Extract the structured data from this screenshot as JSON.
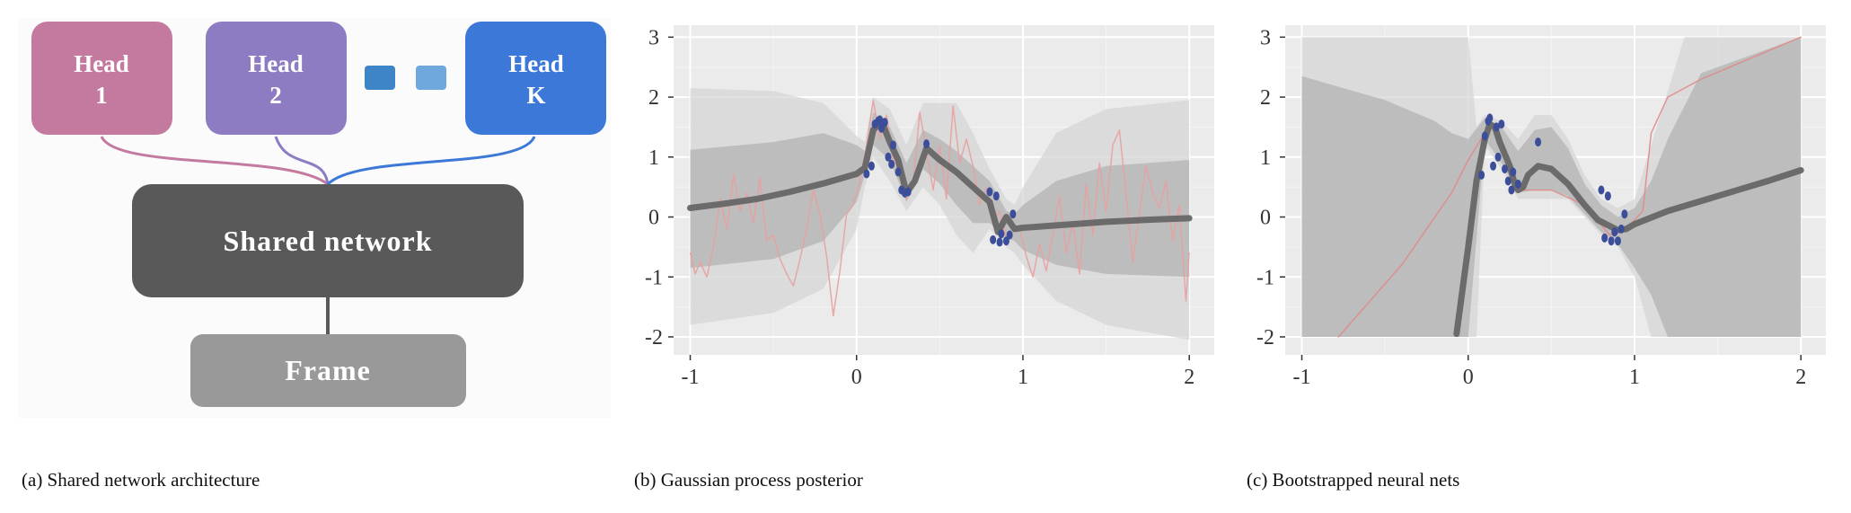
{
  "captions": {
    "a": "(a) Shared network architecture",
    "b": "(b) Gaussian process posterior",
    "c": "(c) Bootstrapped neural nets"
  },
  "diagram": {
    "heads": [
      {
        "line1": "Head",
        "line2": "1",
        "color": "#c47a9f"
      },
      {
        "line1": "Head",
        "line2": "2",
        "color": "#8e7cc3"
      },
      {
        "line1": "Head",
        "line2": "K",
        "color": "#3c78d8"
      }
    ],
    "ellipsis_colors": [
      "#3d85c6",
      "#6fa8dc"
    ],
    "shared_label": "Shared network",
    "shared_color": "#595959",
    "frame_label": "Frame",
    "frame_color": "#999999"
  },
  "chart_data": [
    {
      "id": "gp",
      "type": "line",
      "xlim": [
        -1.1,
        2.15
      ],
      "ylim": [
        -2.3,
        3.2
      ],
      "xticks": [
        "-1",
        "0",
        "1",
        "2"
      ],
      "yticks": [
        "-2",
        "-1",
        "0",
        "1",
        "2",
        "3"
      ],
      "grid": true,
      "colors": {
        "mean": "#666666",
        "sample": "#e8a0a0",
        "points": "#3c4d99",
        "band_outer": "#d6d6d6",
        "band_inner": "#b3b3b3",
        "background": "#ebebeb"
      },
      "observations": {
        "x": [
          0.06,
          0.09,
          0.11,
          0.13,
          0.14,
          0.15,
          0.17,
          0.19,
          0.21,
          0.22,
          0.25,
          0.27,
          0.29,
          0.31,
          0.42,
          0.8,
          0.82,
          0.84,
          0.86,
          0.87,
          0.9,
          0.92,
          0.94
        ],
        "y": [
          0.72,
          0.85,
          1.55,
          1.6,
          1.62,
          1.48,
          1.58,
          1.0,
          0.88,
          1.2,
          0.75,
          0.45,
          0.4,
          0.42,
          1.22,
          0.42,
          -0.38,
          0.35,
          -0.42,
          -0.28,
          -0.4,
          -0.3,
          0.05
        ]
      },
      "mean": {
        "x": [
          -1.0,
          -0.8,
          -0.6,
          -0.4,
          -0.2,
          0.0,
          0.05,
          0.1,
          0.15,
          0.2,
          0.25,
          0.3,
          0.35,
          0.42,
          0.5,
          0.6,
          0.7,
          0.8,
          0.85,
          0.9,
          0.95,
          1.0,
          1.2,
          1.5,
          1.8,
          2.0
        ],
        "y": [
          0.15,
          0.22,
          0.3,
          0.42,
          0.56,
          0.72,
          0.82,
          1.45,
          1.6,
          1.25,
          0.95,
          0.4,
          0.6,
          1.15,
          0.95,
          0.75,
          0.5,
          0.25,
          -0.25,
          0.0,
          -0.2,
          -0.18,
          -0.14,
          -0.08,
          -0.04,
          -0.02
        ]
      },
      "outer_band": {
        "x": [
          -1.0,
          -0.5,
          -0.2,
          0.0,
          0.05,
          0.1,
          0.2,
          0.3,
          0.4,
          0.5,
          0.6,
          0.7,
          0.8,
          0.9,
          0.95,
          1.0,
          1.2,
          1.5,
          2.0
        ],
        "lower": [
          -1.8,
          -1.6,
          -1.2,
          -0.2,
          0.5,
          1.0,
          0.6,
          0.1,
          0.5,
          0.2,
          -0.3,
          -0.6,
          -0.2,
          -0.5,
          -0.6,
          -0.8,
          -1.4,
          -1.8,
          -2.05
        ],
        "upper": [
          2.15,
          2.1,
          1.9,
          1.35,
          1.25,
          2.0,
          1.8,
          1.2,
          1.9,
          1.9,
          1.9,
          1.4,
          0.8,
          0.3,
          0.2,
          0.5,
          1.4,
          1.8,
          1.95
        ]
      },
      "inner_band": {
        "x": [
          -1.0,
          -0.5,
          -0.2,
          0.0,
          0.05,
          0.1,
          0.2,
          0.3,
          0.4,
          0.5,
          0.6,
          0.7,
          0.8,
          0.9,
          0.95,
          1.0,
          1.2,
          1.5,
          2.0
        ],
        "lower": [
          -0.85,
          -0.7,
          -0.4,
          0.25,
          0.7,
          1.2,
          0.95,
          0.25,
          0.8,
          0.55,
          0.2,
          -0.1,
          -0.1,
          -0.35,
          -0.4,
          -0.55,
          -0.8,
          -0.95,
          -1.0
        ],
        "upper": [
          1.12,
          1.25,
          1.4,
          1.2,
          1.1,
          1.75,
          1.5,
          0.9,
          1.45,
          1.3,
          1.1,
          0.85,
          0.6,
          0.1,
          0.05,
          0.2,
          0.6,
          0.85,
          0.95
        ]
      },
      "sample": {
        "x": [
          -1.0,
          -0.97,
          -0.94,
          -0.9,
          -0.86,
          -0.82,
          -0.78,
          -0.74,
          -0.7,
          -0.66,
          -0.62,
          -0.58,
          -0.54,
          -0.5,
          -0.46,
          -0.42,
          -0.38,
          -0.34,
          -0.3,
          -0.26,
          -0.22,
          -0.18,
          -0.14,
          -0.1,
          -0.06,
          -0.02,
          0.02,
          0.06,
          0.1,
          0.14,
          0.18,
          0.22,
          0.26,
          0.3,
          0.34,
          0.38,
          0.42,
          0.46,
          0.5,
          0.54,
          0.58,
          0.62,
          0.66,
          0.7,
          0.74,
          0.78,
          0.82,
          0.86,
          0.9,
          0.94,
          0.98,
          1.02,
          1.06,
          1.1,
          1.14,
          1.18,
          1.22,
          1.26,
          1.3,
          1.34,
          1.38,
          1.42,
          1.46,
          1.5,
          1.54,
          1.58,
          1.62,
          1.66,
          1.7,
          1.74,
          1.78,
          1.82,
          1.86,
          1.9,
          1.94,
          1.98,
          2.0
        ],
        "y": [
          -0.6,
          -0.95,
          -0.75,
          -1.0,
          -0.5,
          0.3,
          -0.2,
          0.7,
          0.1,
          0.4,
          -0.1,
          0.65,
          -0.4,
          -0.3,
          -0.7,
          -0.95,
          -1.15,
          -0.7,
          -0.2,
          0.45,
          0.05,
          -0.65,
          -1.65,
          -0.9,
          0.05,
          0.2,
          0.6,
          1.2,
          1.95,
          1.3,
          1.7,
          0.95,
          0.8,
          0.3,
          0.55,
          1.75,
          1.1,
          0.45,
          1.2,
          0.3,
          1.85,
          0.9,
          1.3,
          0.85,
          0.2,
          0.5,
          -0.1,
          0.1,
          -0.35,
          -0.25,
          -0.2,
          -0.65,
          -1.0,
          -0.45,
          -0.9,
          -0.3,
          0.35,
          -0.6,
          -0.1,
          -0.95,
          0.55,
          -0.3,
          0.9,
          0.1,
          1.2,
          1.45,
          0.4,
          -0.75,
          0.05,
          0.85,
          0.4,
          0.15,
          0.6,
          -0.4,
          0.2,
          -1.4,
          -0.6
        ]
      }
    },
    {
      "id": "bootstrap",
      "type": "line",
      "xlim": [
        -1.1,
        2.15
      ],
      "ylim": [
        -2.3,
        3.2
      ],
      "xticks": [
        "-1",
        "0",
        "1",
        "2"
      ],
      "yticks": [
        "-2",
        "-1",
        "0",
        "1",
        "2",
        "3"
      ],
      "grid": true,
      "colors": {
        "mean": "#666666",
        "sample": "#e08a8a",
        "points": "#3c4d99",
        "band_outer": "#d6d6d6",
        "band_inner": "#b3b3b3",
        "background": "#ebebeb"
      },
      "observations": {
        "x": [
          0.08,
          0.1,
          0.12,
          0.13,
          0.15,
          0.17,
          0.18,
          0.2,
          0.22,
          0.24,
          0.26,
          0.27,
          0.3,
          0.42,
          0.8,
          0.82,
          0.84,
          0.86,
          0.88,
          0.9,
          0.92,
          0.94
        ],
        "y": [
          0.7,
          1.35,
          1.6,
          1.65,
          0.85,
          1.5,
          1.0,
          1.55,
          0.8,
          0.6,
          0.45,
          0.75,
          0.55,
          1.25,
          0.45,
          -0.35,
          0.35,
          -0.4,
          -0.25,
          -0.4,
          -0.2,
          0.05
        ]
      },
      "mean": {
        "x": [
          -0.07,
          0.0,
          0.05,
          0.1,
          0.13,
          0.16,
          0.19,
          0.22,
          0.25,
          0.28,
          0.3,
          0.33,
          0.36,
          0.42,
          0.5,
          0.6,
          0.7,
          0.78,
          0.85,
          0.9,
          0.95,
          1.0,
          1.2,
          1.5,
          1.8,
          2.0
        ],
        "y": [
          -1.95,
          -0.5,
          0.6,
          1.3,
          1.55,
          1.5,
          1.25,
          1.05,
          0.85,
          0.55,
          0.45,
          0.5,
          0.7,
          0.85,
          0.8,
          0.55,
          0.2,
          -0.05,
          -0.15,
          -0.22,
          -0.2,
          -0.12,
          0.1,
          0.35,
          0.6,
          0.78
        ]
      },
      "outer_band": {
        "x": [
          -1.0,
          -0.1,
          -0.05,
          0.0,
          0.05,
          0.1,
          0.2,
          0.3,
          0.4,
          0.5,
          0.6,
          0.7,
          0.8,
          0.9,
          1.0,
          1.1,
          1.3,
          1.5,
          2.0
        ],
        "lower": [
          -2.0,
          -2.0,
          -2.0,
          -2.0,
          -2.0,
          1.2,
          0.8,
          0.3,
          0.3,
          0.3,
          0.3,
          0.0,
          -0.3,
          -0.5,
          -1.0,
          -2.0,
          -2.0,
          -2.0,
          -2.0
        ],
        "upper": [
          3.0,
          3.0,
          3.0,
          3.0,
          1.5,
          1.7,
          1.6,
          1.3,
          1.7,
          1.7,
          1.3,
          0.7,
          0.3,
          0.15,
          0.3,
          1.2,
          3.0,
          3.0,
          3.0
        ]
      },
      "inner_band": {
        "x": [
          -1.0,
          -0.5,
          -0.2,
          -0.1,
          0.0,
          0.1,
          0.2,
          0.3,
          0.4,
          0.5,
          0.6,
          0.7,
          0.8,
          0.9,
          1.0,
          1.1,
          1.2,
          1.4,
          2.0
        ],
        "lower": [
          -2.0,
          -2.0,
          -2.0,
          -2.0,
          -2.0,
          1.3,
          0.9,
          0.4,
          0.45,
          0.45,
          0.35,
          0.05,
          -0.25,
          -0.45,
          -0.85,
          -1.3,
          -2.0,
          -2.0,
          -2.0
        ],
        "upper": [
          2.35,
          1.95,
          1.6,
          1.4,
          1.3,
          1.65,
          1.5,
          1.1,
          1.45,
          1.5,
          1.15,
          0.55,
          0.2,
          0.0,
          0.15,
          0.6,
          1.3,
          2.4,
          3.0
        ]
      },
      "sample": {
        "x": [
          -0.78,
          -0.4,
          -0.1,
          0.0,
          0.1,
          0.15,
          0.2,
          0.25,
          0.3,
          0.5,
          0.7,
          0.85,
          0.95,
          1.05,
          1.1,
          1.2,
          1.4,
          1.7,
          2.0
        ],
        "y": [
          -2.0,
          -0.8,
          0.4,
          0.95,
          1.4,
          1.5,
          1.3,
          0.9,
          0.45,
          0.45,
          0.2,
          -0.3,
          -0.2,
          0.1,
          1.4,
          2.0,
          2.3,
          2.65,
          3.0
        ]
      }
    }
  ]
}
